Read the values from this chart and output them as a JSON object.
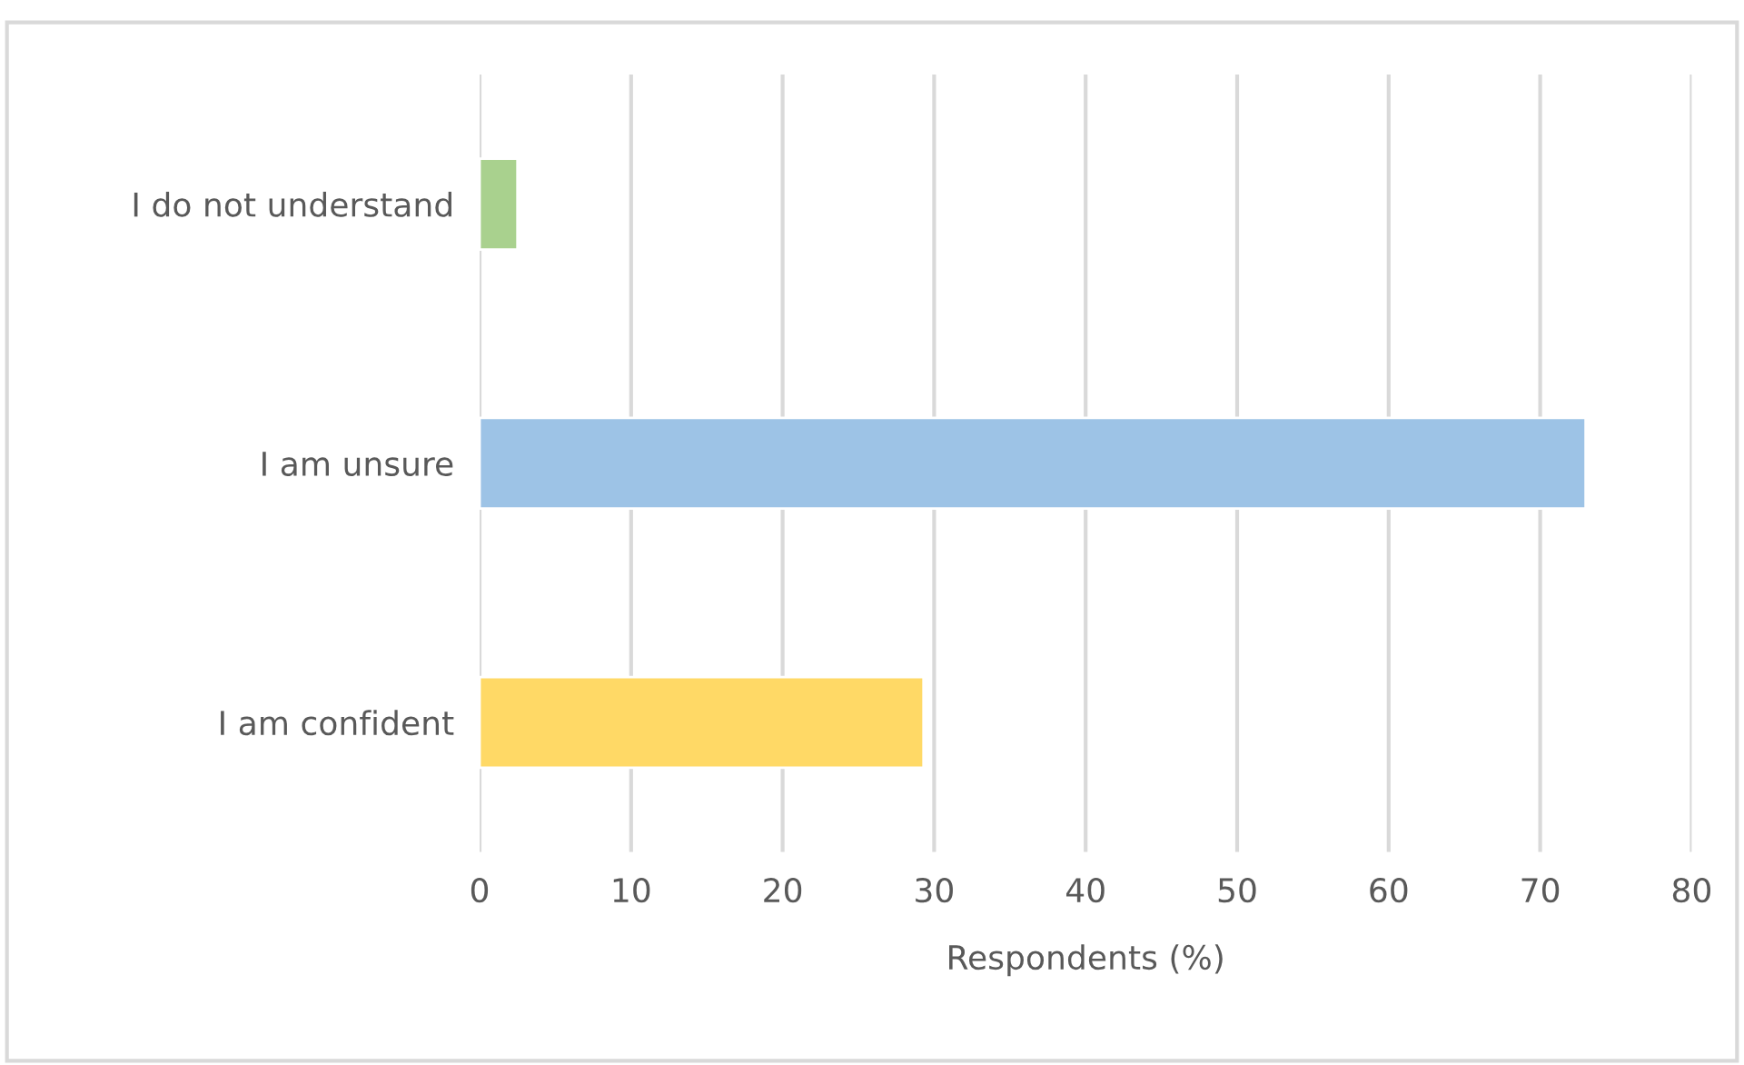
{
  "chart_data": {
    "type": "bar",
    "orientation": "horizontal",
    "xlabel": "Respondents (%)",
    "categories": [
      "I do not understand",
      "I am unsure",
      "I am confident"
    ],
    "values": [
      2.5,
      73,
      29.3
    ],
    "colors": [
      "#a9d18e",
      "#9dc3e6",
      "#ffd966"
    ],
    "xlim": [
      0,
      80
    ],
    "xticks": [
      0,
      10,
      20,
      30,
      40,
      50,
      60,
      70,
      80
    ],
    "grid": "x"
  }
}
